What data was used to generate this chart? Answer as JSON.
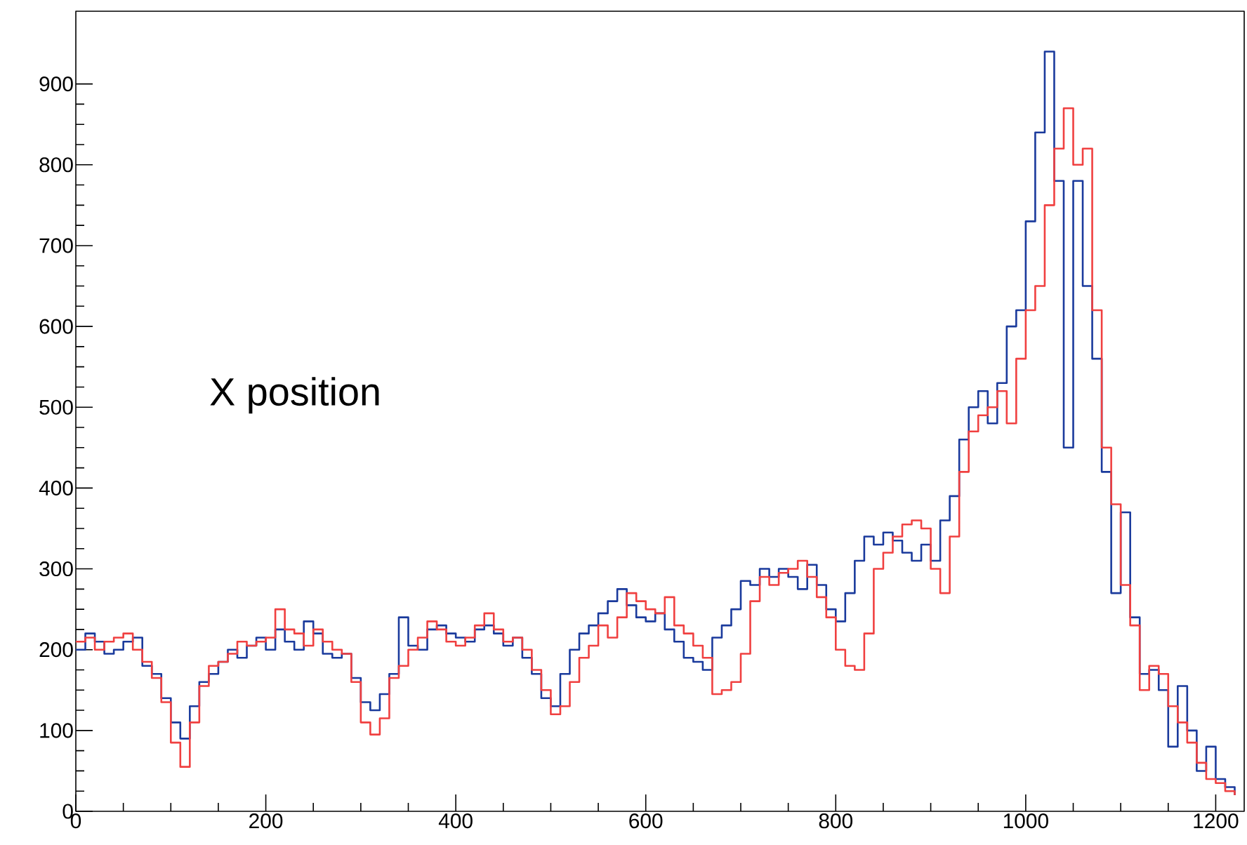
{
  "chart_data": {
    "type": "step",
    "x": [
      0,
      10,
      20,
      30,
      40,
      50,
      60,
      70,
      80,
      90,
      100,
      110,
      120,
      130,
      140,
      150,
      160,
      170,
      180,
      190,
      200,
      210,
      220,
      230,
      240,
      250,
      260,
      270,
      280,
      290,
      300,
      310,
      320,
      330,
      340,
      350,
      360,
      370,
      380,
      390,
      400,
      410,
      420,
      430,
      440,
      450,
      460,
      470,
      480,
      490,
      500,
      510,
      520,
      530,
      540,
      550,
      560,
      570,
      580,
      590,
      600,
      610,
      620,
      630,
      640,
      650,
      660,
      670,
      680,
      690,
      700,
      710,
      720,
      730,
      740,
      750,
      760,
      770,
      780,
      790,
      800,
      810,
      820,
      830,
      840,
      850,
      860,
      870,
      880,
      890,
      900,
      910,
      920,
      930,
      940,
      950,
      960,
      970,
      980,
      990,
      1000,
      1010,
      1020,
      1030,
      1040,
      1050,
      1060,
      1070,
      1080,
      1090,
      1100,
      1110,
      1120,
      1130,
      1140,
      1150,
      1160,
      1170,
      1180,
      1190,
      1200,
      1210,
      1220
    ],
    "series": [
      {
        "color": "#1a3a9c",
        "values": [
          200,
          220,
          210,
          195,
          200,
          210,
          215,
          180,
          170,
          140,
          110,
          90,
          130,
          160,
          170,
          185,
          200,
          190,
          205,
          215,
          200,
          225,
          210,
          200,
          235,
          220,
          195,
          190,
          195,
          165,
          135,
          125,
          145,
          170,
          240,
          205,
          200,
          225,
          230,
          220,
          215,
          210,
          225,
          230,
          220,
          205,
          215,
          190,
          170,
          140,
          130,
          170,
          200,
          220,
          230,
          245,
          260,
          275,
          255,
          240,
          235,
          245,
          225,
          210,
          190,
          185,
          175,
          215,
          230,
          250,
          285,
          280,
          300,
          290,
          300,
          290,
          275,
          305,
          280,
          250,
          235,
          270,
          310,
          340,
          330,
          345,
          335,
          320,
          310,
          330,
          310,
          360,
          390,
          460,
          500,
          520,
          480,
          530,
          600,
          620,
          730,
          840,
          940,
          780,
          450,
          780,
          650,
          560,
          420,
          270,
          370,
          240,
          170,
          175,
          150,
          80,
          155,
          100,
          50,
          80,
          40,
          30,
          20
        ]
      },
      {
        "color": "#f04040",
        "values": [
          210,
          215,
          200,
          210,
          215,
          220,
          200,
          185,
          165,
          135,
          85,
          55,
          110,
          155,
          180,
          185,
          195,
          210,
          205,
          210,
          215,
          250,
          225,
          220,
          205,
          225,
          210,
          200,
          195,
          160,
          110,
          95,
          115,
          165,
          180,
          200,
          215,
          235,
          225,
          210,
          205,
          215,
          230,
          245,
          225,
          210,
          215,
          200,
          175,
          150,
          120,
          130,
          160,
          190,
          205,
          230,
          215,
          240,
          270,
          260,
          250,
          245,
          265,
          230,
          220,
          205,
          190,
          145,
          150,
          160,
          195,
          260,
          290,
          280,
          295,
          300,
          310,
          290,
          265,
          240,
          200,
          180,
          175,
          220,
          300,
          320,
          340,
          355,
          360,
          350,
          300,
          270,
          340,
          420,
          470,
          490,
          500,
          520,
          480,
          560,
          620,
          650,
          750,
          820,
          870,
          800,
          820,
          620,
          450,
          380,
          280,
          230,
          150,
          180,
          170,
          130,
          110,
          85,
          60,
          40,
          35,
          25,
          20
        ]
      }
    ],
    "xlim": [
      0,
      1230
    ],
    "ylim": [
      0,
      990
    ],
    "xticks": [
      0,
      200,
      400,
      600,
      800,
      1000,
      1200
    ],
    "yticks": [
      0,
      100,
      200,
      300,
      400,
      500,
      600,
      700,
      800,
      900
    ],
    "grid": false,
    "annotations": [
      "X position"
    ]
  }
}
